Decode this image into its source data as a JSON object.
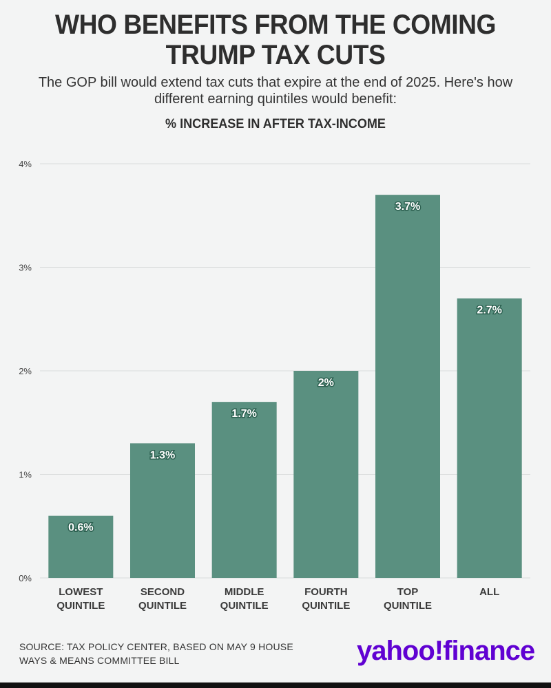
{
  "title": {
    "line1": "WHO BENEFITS FROM THE COMING",
    "line2": "TRUMP TAX CUTS"
  },
  "subtitle": {
    "line1": "The GOP bill would extend tax cuts that expire at the end of 2025. Here's how",
    "line2": "different earning quintiles would benefit:"
  },
  "chart_heading": "% INCREASE IN AFTER TAX-INCOME",
  "source": {
    "line1": "SOURCE: TAX POLICY CENTER, BASED ON MAY 9 HOUSE",
    "line2": "WAYS & MEANS COMMITTEE BILL"
  },
  "logo": {
    "brand": "yahoo!",
    "product": "finance",
    "color": "#6001d2"
  },
  "colors": {
    "bar": "#5a9080",
    "grid": "#d9dcdc",
    "axis_text": "#444444",
    "label_text": "#ffffff"
  },
  "chart_data": {
    "type": "bar",
    "title": "% INCREASE IN AFTER TAX-INCOME",
    "xlabel": "",
    "ylabel": "",
    "ylim": [
      0,
      4
    ],
    "yticks": [
      0,
      1,
      2,
      3,
      4
    ],
    "ytick_labels": [
      "0%",
      "1%",
      "2%",
      "3%",
      "4%"
    ],
    "grid": true,
    "categories": [
      [
        "LOWEST",
        "QUINTILE"
      ],
      [
        "SECOND",
        "QUINTILE"
      ],
      [
        "MIDDLE",
        "QUINTILE"
      ],
      [
        "FOURTH",
        "QUINTILE"
      ],
      [
        "TOP",
        "QUINTILE"
      ],
      [
        "ALL"
      ]
    ],
    "values": [
      0.6,
      1.3,
      1.7,
      2,
      3.7,
      2.7
    ],
    "value_labels": [
      "0.6%",
      "1.3%",
      "1.7%",
      "2%",
      "3.7%",
      "2.7%"
    ]
  }
}
